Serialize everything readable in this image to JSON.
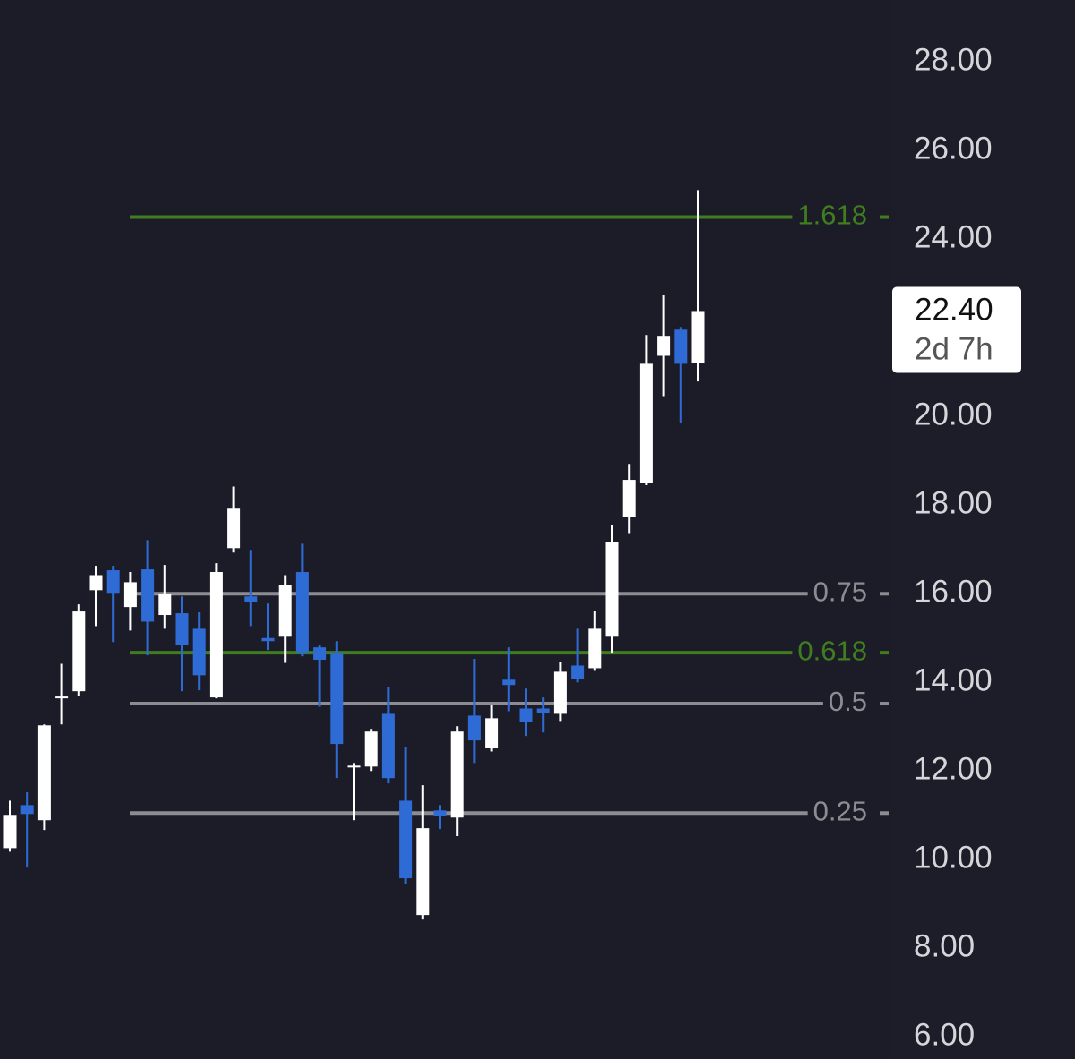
{
  "chart_data": {
    "type": "candlestick",
    "ylim": [
      5.5,
      29.4
    ],
    "yticks": [
      {
        "value": 28,
        "label": "28.00"
      },
      {
        "value": 26,
        "label": "26.00"
      },
      {
        "value": 24,
        "label": "24.00"
      },
      {
        "value": 20,
        "label": "20.00"
      },
      {
        "value": 18,
        "label": "18.00"
      },
      {
        "value": 16,
        "label": "16.00"
      },
      {
        "value": 14,
        "label": "14.00"
      },
      {
        "value": 12,
        "label": "12.00"
      },
      {
        "value": 10,
        "label": "10.00"
      },
      {
        "value": 8,
        "label": "8.00"
      },
      {
        "value": 6,
        "label": "6.00"
      }
    ],
    "up_color": "#ffffff",
    "down_color": "#2f6bd4",
    "open": [
      10.26,
      11.23,
      10.89,
      13.64,
      13.8,
      16.08,
      16.53,
      15.7,
      16.55,
      15.52,
      15.56,
      15.21,
      13.66,
      17.03,
      15.94,
      15.0,
      15.03,
      16.49,
      14.79,
      14.65,
      12.08,
      12.1,
      13.29,
      11.33,
      8.75,
      11.11,
      10.95,
      13.25,
      12.51,
      14.06,
      13.41,
      13.41,
      13.29,
      14.38,
      14.32,
      15.03,
      17.74,
      18.51,
      21.37,
      21.96,
      21.21
    ],
    "high": [
      11.33,
      11.52,
      13.05,
      14.42,
      15.76,
      16.63,
      16.63,
      16.49,
      17.21,
      16.65,
      15.94,
      15.58,
      16.69,
      18.42,
      16.99,
      15.78,
      16.42,
      17.13,
      14.83,
      14.93,
      12.18,
      12.95,
      13.9,
      12.53,
      11.68,
      11.23,
      13.01,
      14.53,
      13.49,
      14.79,
      13.86,
      13.66,
      14.46,
      15.21,
      15.62,
      17.54,
      18.93,
      21.84,
      22.75,
      22.02,
      25.11
    ],
    "low": [
      10.18,
      9.82,
      10.67,
      13.05,
      13.7,
      15.27,
      14.91,
      15.17,
      14.61,
      15.21,
      13.8,
      13.82,
      13.64,
      16.93,
      15.27,
      14.73,
      14.44,
      14.59,
      13.45,
      11.84,
      10.89,
      12.0,
      11.72,
      9.46,
      8.65,
      10.69,
      10.53,
      12.18,
      12.44,
      13.35,
      12.79,
      12.87,
      13.13,
      14.0,
      14.26,
      14.65,
      17.37,
      18.45,
      20.46,
      19.86,
      20.79
    ],
    "close": [
      11.01,
      11.03,
      13.03,
      13.68,
      15.6,
      16.42,
      16.02,
      16.26,
      15.37,
      16.0,
      14.85,
      14.16,
      16.49,
      17.92,
      15.82,
      14.93,
      16.2,
      14.67,
      14.51,
      12.61,
      12.12,
      12.89,
      11.84,
      9.58,
      10.71,
      10.99,
      12.89,
      12.69,
      13.19,
      13.94,
      13.11,
      13.31,
      14.24,
      14.08,
      15.21,
      17.17,
      18.57,
      21.19,
      21.82,
      21.19,
      22.38
    ],
    "fib_levels": [
      {
        "label": "1.618",
        "value": 24.5,
        "color": "#3f7d1f"
      },
      {
        "label": "0.75",
        "value": 16.0,
        "color": "#8c8c92"
      },
      {
        "label": "0.618",
        "value": 14.67,
        "color": "#3f7d1f"
      },
      {
        "label": "0.5",
        "value": 13.52,
        "color": "#8c8c92"
      },
      {
        "label": "0.25",
        "value": 11.05,
        "color": "#8c8c92"
      }
    ],
    "last_price": {
      "value": 22.4,
      "label": "22.40"
    },
    "countdown": "2d 7h"
  }
}
